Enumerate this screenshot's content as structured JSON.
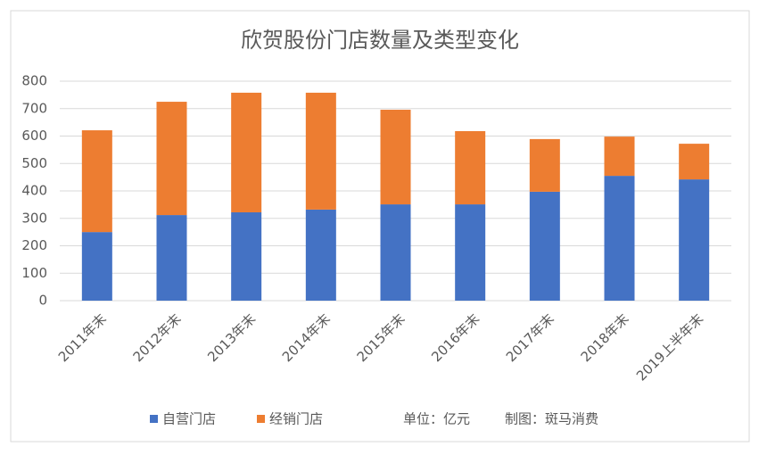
{
  "chart_data": {
    "type": "stacked_bar",
    "title": "欣贺股份门店数量及类型变化",
    "categories": [
      "2011年末",
      "2012年末",
      "2013年末",
      "2014年末",
      "2015年末",
      "2016年末",
      "2017年末",
      "2018年末",
      "2019上半年末"
    ],
    "series": [
      {
        "name": "自营门店",
        "color": "#4472c4",
        "values": [
          250,
          312,
          322,
          332,
          351,
          351,
          397,
          455,
          442
        ]
      },
      {
        "name": "经销门店",
        "color": "#ed7d31",
        "values": [
          371,
          413,
          436,
          426,
          345,
          267,
          192,
          143,
          130
        ]
      }
    ],
    "ylim": [
      0,
      800
    ],
    "yticks": [
      0,
      100,
      200,
      300,
      400,
      500,
      600,
      700,
      800
    ],
    "grid": true,
    "annotations": [
      "单位：亿元",
      "制图：斑马消费"
    ]
  }
}
